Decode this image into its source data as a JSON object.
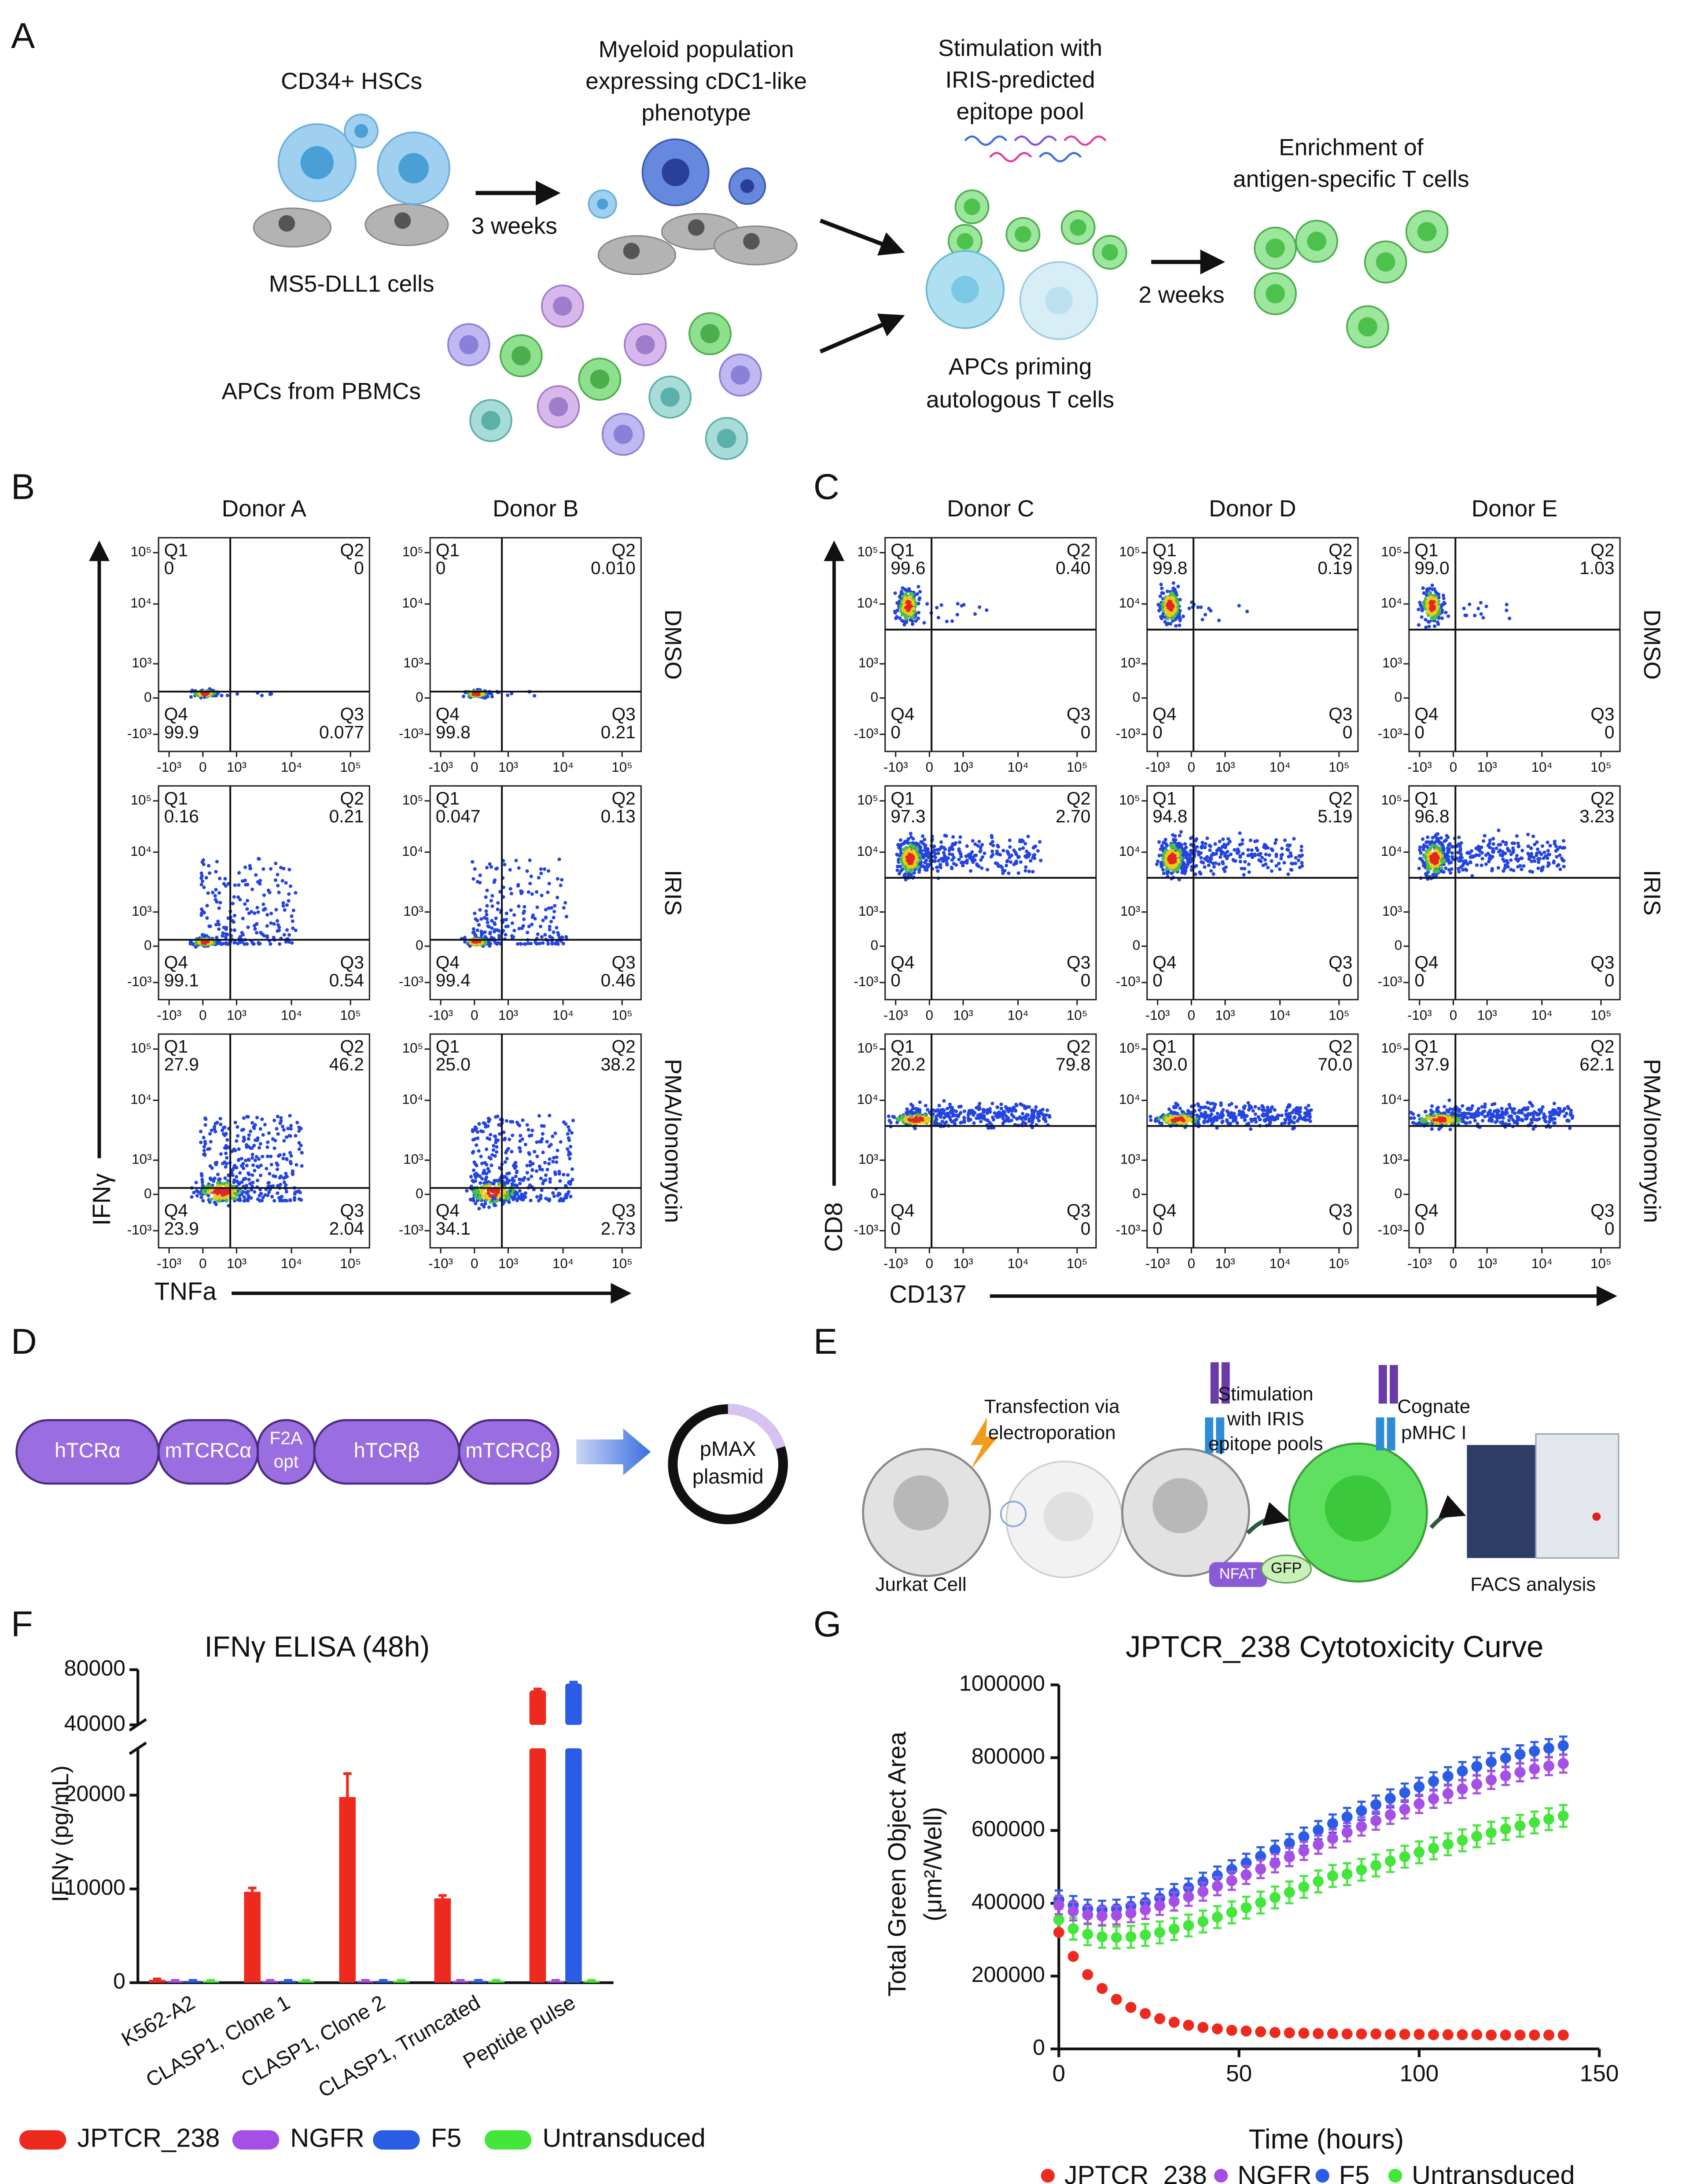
{
  "panel_labels": {
    "a": "A",
    "b": "B",
    "c": "C",
    "d": "D",
    "e": "E",
    "f": "F",
    "g": "G"
  },
  "panel_a": {
    "hscs": "CD34+ HSCs",
    "weeks3": "3 weeks",
    "ms5": "MS5-DLL1 cells",
    "myeloid": [
      "Myeloid population",
      "expressing cDC1-like",
      "phenotype"
    ],
    "apcs_pbmc": "APCs from PBMCs",
    "stimulation": [
      "Stimulation with",
      "IRIS-predicted",
      "epitope pool"
    ],
    "priming": [
      "APCs priming",
      "autologous T cells"
    ],
    "weeks2": "2 weeks",
    "enrichment": [
      "Enrichment of",
      "antigen-specific T cells"
    ]
  },
  "flow_ticks": {
    "y": [
      "10⁵",
      "10⁴",
      "10³",
      "0",
      "-10³"
    ],
    "x": [
      "-10³",
      "0",
      "10³",
      "10⁴",
      "10⁵"
    ]
  },
  "panel_b": {
    "x_label": "TNFa",
    "y_label": "IFNγ",
    "donors": [
      "Donor A",
      "Donor B"
    ],
    "conditions": [
      "DMSO",
      "IRIS",
      "PMA/Ionomycin"
    ],
    "quadrant_names": [
      "Q1",
      "Q2",
      "Q3",
      "Q4"
    ],
    "plots": [
      [
        [
          "0",
          "0",
          "0.077",
          "99.9"
        ],
        [
          "0",
          "0.010",
          "0.21",
          "99.8"
        ]
      ],
      [
        [
          "0.16",
          "0.21",
          "0.54",
          "99.1"
        ],
        [
          "0.047",
          "0.13",
          "0.46",
          "99.4"
        ]
      ],
      [
        [
          "27.9",
          "46.2",
          "2.04",
          "23.9"
        ],
        [
          "25.0",
          "38.2",
          "2.73",
          "34.1"
        ]
      ]
    ]
  },
  "panel_c": {
    "x_label": "CD137",
    "y_label": "CD8",
    "donors": [
      "Donor C",
      "Donor D",
      "Donor E"
    ],
    "conditions": [
      "DMSO",
      "IRIS",
      "PMA/Ionomycin"
    ],
    "quadrant_names": [
      "Q1",
      "Q2",
      "Q3",
      "Q4"
    ],
    "plots": [
      [
        [
          "99.6",
          "0.40",
          "0",
          "0"
        ],
        [
          "99.8",
          "0.19",
          "0",
          "0"
        ],
        [
          "99.0",
          "1.03",
          "0",
          "0"
        ]
      ],
      [
        [
          "97.3",
          "2.70",
          "0",
          "0"
        ],
        [
          "94.8",
          "5.19",
          "0",
          "0"
        ],
        [
          "96.8",
          "3.23",
          "0",
          "0"
        ]
      ],
      [
        [
          "20.2",
          "79.8",
          "0",
          "0"
        ],
        [
          "30.0",
          "70.0",
          "0",
          "0"
        ],
        [
          "37.9",
          "62.1",
          "0",
          "0"
        ]
      ]
    ]
  },
  "panel_d": {
    "segments": [
      "hTCRα",
      "mTCRCα",
      [
        "F2A",
        "opt"
      ],
      "hTCRβ",
      "mTCRCβ"
    ],
    "plasmid": [
      "pMAX",
      "plasmid"
    ]
  },
  "panel_e": {
    "transfection": [
      "Transfection via",
      "electroporation"
    ],
    "stimulation": [
      "Stimulation",
      "with IRIS",
      "epitope pools"
    ],
    "cognate": [
      "Cognate",
      "pMHC I"
    ],
    "jurkat": "Jurkat Cell",
    "facs": "FACS analysis",
    "nfat": "NFAT",
    "gfp": "GFP"
  },
  "chart_data": [
    {
      "type": "bar",
      "title": "IFNγ ELISA (48h)",
      "y_label": "IFNγ  (pg/mL)",
      "categories": [
        "K562-A2",
        "CLASP1, Clone 1",
        "CLASP1, Clone 2",
        "CLASP1, Truncated",
        "Peptide pulse"
      ],
      "series": [
        {
          "name": "JPTCR_238",
          "color": "#ee2a1f",
          "values": [
            300,
            9700,
            19800,
            9000,
            65000
          ],
          "errors": [
            100,
            400,
            2500,
            300,
            1000
          ]
        },
        {
          "name": "NGFR",
          "color": "#a64fe6",
          "values": [
            200,
            200,
            200,
            200,
            200
          ],
          "errors": [
            50,
            50,
            50,
            50,
            50
          ]
        },
        {
          "name": "F5",
          "color": "#2b5ce6",
          "values": [
            200,
            200,
            200,
            200,
            70000
          ],
          "errors": [
            50,
            50,
            50,
            50,
            1000
          ]
        },
        {
          "name": "Untransduced",
          "color": "#45e63c",
          "values": [
            200,
            200,
            200,
            200,
            200
          ],
          "errors": [
            50,
            50,
            50,
            50,
            50
          ]
        }
      ],
      "ylim": [
        0,
        80000
      ],
      "yticks": [
        0,
        10000,
        20000,
        40000,
        80000
      ],
      "axis_break": [
        25000,
        40000
      ]
    },
    {
      "type": "line",
      "title": "JPTCR_238 Cytotoxicity Curve",
      "x_label": "Time (hours)",
      "y_label": [
        "Total Green Object Area",
        "(μm²/Well)"
      ],
      "x": [
        0,
        4,
        8,
        12,
        16,
        20,
        24,
        28,
        32,
        36,
        40,
        44,
        48,
        52,
        56,
        60,
        64,
        68,
        72,
        76,
        80,
        84,
        88,
        92,
        96,
        100,
        104,
        108,
        112,
        116,
        120,
        124,
        128,
        132,
        136,
        140
      ],
      "series": [
        {
          "name": "JPTCR_238",
          "color": "#ee2a1f",
          "values": [
            320000,
            254000,
            204000,
            166000,
            136000,
            114000,
            97000,
            83000,
            73000,
            65000,
            59000,
            55000,
            51000,
            49000,
            47000,
            45000,
            44000,
            43000,
            42000,
            42000,
            41000,
            41000,
            41000,
            40000,
            40000,
            40000,
            39000,
            39000,
            39000,
            39000,
            38000,
            38000,
            38000,
            38000,
            38000,
            38000
          ],
          "errors": [
            5000,
            5000,
            5000,
            5000,
            5000,
            5000,
            5000,
            5000,
            5000,
            5000,
            5000,
            5000,
            5000,
            5000,
            5000,
            5000,
            5000,
            5000,
            5000,
            5000,
            5000,
            5000,
            5000,
            5000,
            5000,
            5000,
            5000,
            5000,
            5000,
            5000,
            5000,
            5000,
            5000,
            5000,
            5000,
            5000
          ]
        },
        {
          "name": "NGFR",
          "color": "#a64fe6",
          "values": [
            395000,
            378000,
            368000,
            365000,
            367000,
            373000,
            382000,
            393000,
            405000,
            418000,
            432000,
            447000,
            462000,
            478000,
            494000,
            510000,
            527000,
            544000,
            561000,
            578000,
            595000,
            611000,
            627000,
            643000,
            658000,
            673000,
            687000,
            701000,
            714000,
            727000,
            739000,
            750000,
            760000,
            769000,
            777000,
            784000
          ],
          "errors": [
            25000,
            25000,
            25000,
            25000,
            25000,
            25000,
            25000,
            25000,
            25000,
            25000,
            25000,
            25000,
            25000,
            25000,
            25000,
            25000,
            25000,
            25000,
            25000,
            25000,
            25000,
            25000,
            25000,
            25000,
            25000,
            25000,
            25000,
            25000,
            25000,
            25000,
            25000,
            25000,
            25000,
            25000,
            25000,
            25000
          ]
        },
        {
          "name": "F5",
          "color": "#2b5ce6",
          "values": [
            410000,
            395000,
            385000,
            382000,
            385000,
            392000,
            402000,
            414000,
            428000,
            443000,
            459000,
            476000,
            493000,
            511000,
            529000,
            547000,
            565000,
            583000,
            601000,
            619000,
            637000,
            654000,
            671000,
            688000,
            704000,
            720000,
            735000,
            749000,
            763000,
            776000,
            788000,
            799000,
            809000,
            818000,
            826000,
            833000
          ],
          "errors": [
            25000,
            25000,
            25000,
            25000,
            25000,
            25000,
            25000,
            25000,
            25000,
            25000,
            25000,
            25000,
            25000,
            25000,
            25000,
            25000,
            25000,
            25000,
            25000,
            25000,
            25000,
            25000,
            25000,
            25000,
            25000,
            25000,
            25000,
            25000,
            25000,
            25000,
            25000,
            25000,
            25000,
            25000,
            25000,
            25000
          ]
        },
        {
          "name": "Untransduced",
          "color": "#45e63c",
          "values": [
            355000,
            330000,
            315000,
            308000,
            306000,
            308000,
            313000,
            320000,
            329000,
            339000,
            350000,
            362000,
            375000,
            388000,
            402000,
            416000,
            430000,
            445000,
            460000,
            475000,
            480000,
            492000,
            504000,
            516000,
            528000,
            540000,
            551000,
            562000,
            573000,
            584000,
            594000,
            604000,
            613000,
            622000,
            631000,
            640000
          ],
          "errors": [
            30000,
            30000,
            30000,
            30000,
            30000,
            30000,
            30000,
            30000,
            30000,
            30000,
            30000,
            30000,
            30000,
            30000,
            30000,
            30000,
            30000,
            30000,
            30000,
            30000,
            30000,
            30000,
            30000,
            30000,
            30000,
            30000,
            30000,
            30000,
            30000,
            30000,
            30000,
            30000,
            30000,
            30000,
            30000,
            30000
          ]
        }
      ],
      "xlim": [
        0,
        150
      ],
      "xticks": [
        0,
        50,
        100,
        150
      ],
      "ylim": [
        0,
        1000000
      ],
      "yticks": [
        0,
        200000,
        400000,
        600000,
        800000,
        1000000
      ]
    }
  ]
}
